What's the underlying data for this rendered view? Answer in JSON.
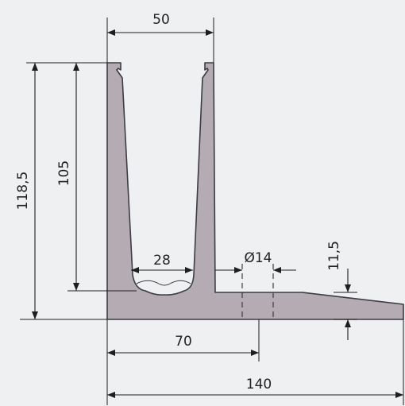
{
  "drawing": {
    "dimensions": {
      "top_width": "50",
      "overall_height": "118,5",
      "channel_height": "105",
      "channel_bottom_width": "28",
      "hole_diameter": "Ø14",
      "base_thickness": "11,5",
      "half_width": "70",
      "overall_width": "140"
    },
    "colors": {
      "background": "#eef0f2",
      "profile_fill": "#b4acb2",
      "profile_stroke": "#3c3c44",
      "dimension_line": "#1e1e1e"
    }
  }
}
